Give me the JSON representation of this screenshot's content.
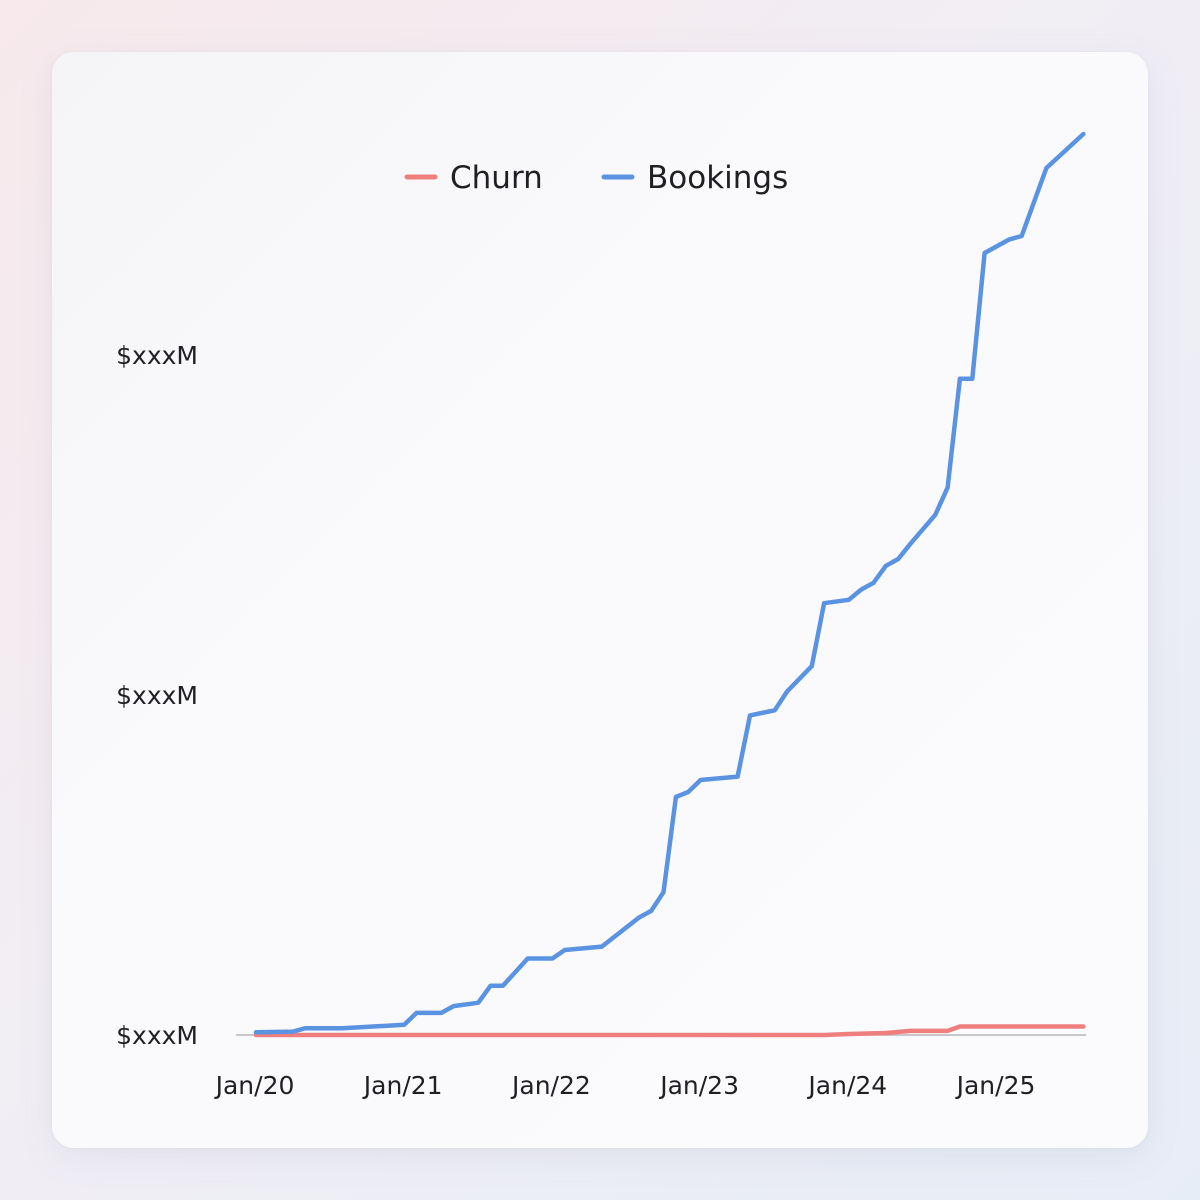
{
  "chart_data": {
    "type": "line",
    "title": "",
    "xlabel": "",
    "ylabel": "",
    "x_tick_labels": [
      "Jan/20",
      "Jan/21",
      "Jan/22",
      "Jan/23",
      "Jan/24",
      "Jan/25"
    ],
    "y_tick_labels": [
      "$xxxM",
      "$xxxM",
      "$xxxM"
    ],
    "y_tick_values": [
      0,
      1,
      2
    ],
    "ylim": [
      0,
      2.6
    ],
    "xlim": [
      "2020-01",
      "2025-08"
    ],
    "grid": false,
    "legend_position": "top-center",
    "series": [
      {
        "name": "Churn",
        "color": "#ef7f7d",
        "points": [
          [
            "2020-01",
            0
          ],
          [
            "2020-07",
            0
          ],
          [
            "2021-01",
            0
          ],
          [
            "2021-07",
            0
          ],
          [
            "2022-01",
            0
          ],
          [
            "2022-07",
            0
          ],
          [
            "2023-01",
            0
          ],
          [
            "2023-07",
            0
          ],
          [
            "2023-11",
            0
          ],
          [
            "2024-01",
            0.003
          ],
          [
            "2024-04",
            0.006
          ],
          [
            "2024-06",
            0.012
          ],
          [
            "2024-09",
            0.012
          ],
          [
            "2024-10",
            0.025
          ],
          [
            "2025-01",
            0.025
          ],
          [
            "2025-04",
            0.025
          ],
          [
            "2025-08",
            0.025
          ]
        ]
      },
      {
        "name": "Bookings",
        "color": "#5b93e3",
        "points": [
          [
            "2020-01",
            0.008
          ],
          [
            "2020-04",
            0.01
          ],
          [
            "2020-05",
            0.02
          ],
          [
            "2020-08",
            0.02
          ],
          [
            "2021-01",
            0.03
          ],
          [
            "2021-02",
            0.065
          ],
          [
            "2021-04",
            0.065
          ],
          [
            "2021-05",
            0.085
          ],
          [
            "2021-07",
            0.095
          ],
          [
            "2021-08",
            0.145
          ],
          [
            "2021-09",
            0.145
          ],
          [
            "2021-11",
            0.225
          ],
          [
            "2022-01",
            0.225
          ],
          [
            "2022-02",
            0.25
          ],
          [
            "2022-05",
            0.26
          ],
          [
            "2022-08",
            0.345
          ],
          [
            "2022-09",
            0.365
          ],
          [
            "2022-10",
            0.42
          ],
          [
            "2022-11",
            0.7
          ],
          [
            "2022-12",
            0.715
          ],
          [
            "2023-01",
            0.75
          ],
          [
            "2023-04",
            0.76
          ],
          [
            "2023-05",
            0.94
          ],
          [
            "2023-07",
            0.955
          ],
          [
            "2023-08",
            1.01
          ],
          [
            "2023-10",
            1.085
          ],
          [
            "2023-11",
            1.27
          ],
          [
            "2024-01",
            1.28
          ],
          [
            "2024-02",
            1.31
          ],
          [
            "2024-03",
            1.33
          ],
          [
            "2024-04",
            1.38
          ],
          [
            "2024-05",
            1.4
          ],
          [
            "2024-06",
            1.445
          ],
          [
            "2024-08",
            1.53
          ],
          [
            "2024-09",
            1.61
          ],
          [
            "2024-10",
            1.93
          ],
          [
            "2024-11",
            1.93
          ],
          [
            "2024-12",
            2.3
          ],
          [
            "2025-02",
            2.34
          ],
          [
            "2025-03",
            2.35
          ],
          [
            "2025-04",
            2.45
          ],
          [
            "2025-05",
            2.55
          ],
          [
            "2025-08",
            2.65
          ]
        ]
      }
    ]
  },
  "legend": {
    "items": [
      {
        "label": "Churn",
        "color": "#ef7f7d"
      },
      {
        "label": "Bookings",
        "color": "#5b93e3"
      }
    ]
  },
  "colors": {
    "baseline": "#b8b8bc",
    "text": "#1f1f24"
  }
}
